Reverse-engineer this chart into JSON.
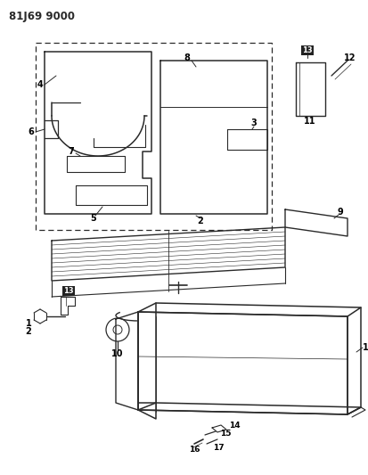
{
  "title": "81J69 9000",
  "bg_color": "#ffffff",
  "line_color": "#2a2a2a",
  "fig_width": 4.14,
  "fig_height": 5.33,
  "dpi": 100
}
